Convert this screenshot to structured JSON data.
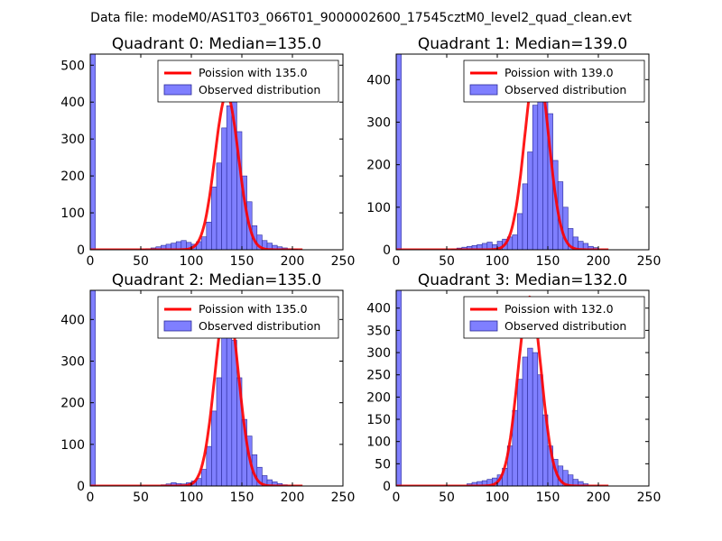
{
  "figure": {
    "suptitle": "Data file: modeM0/AS1T03_066T01_9000002600_17545cztM0_level2_quad_clean.evt"
  },
  "chart_data": [
    {
      "type": "bar",
      "title": "Quadrant 0: Median=135.0",
      "xlim": [
        0,
        250
      ],
      "ylim": [
        0,
        530
      ],
      "xticks": [
        0,
        50,
        100,
        150,
        200,
        250
      ],
      "yticks": [
        0,
        100,
        200,
        300,
        400,
        500
      ],
      "bin_width": 5,
      "hist_bins": [
        [
          0,
          530
        ],
        [
          50,
          2
        ],
        [
          55,
          3
        ],
        [
          60,
          5
        ],
        [
          65,
          8
        ],
        [
          70,
          12
        ],
        [
          75,
          15
        ],
        [
          80,
          18
        ],
        [
          85,
          22
        ],
        [
          90,
          25
        ],
        [
          95,
          20
        ],
        [
          100,
          15
        ],
        [
          105,
          22
        ],
        [
          110,
          35
        ],
        [
          115,
          75
        ],
        [
          120,
          170
        ],
        [
          125,
          235
        ],
        [
          130,
          330
        ],
        [
          135,
          390
        ],
        [
          140,
          400
        ],
        [
          145,
          320
        ],
        [
          150,
          200
        ],
        [
          155,
          130
        ],
        [
          160,
          65
        ],
        [
          165,
          40
        ],
        [
          170,
          25
        ],
        [
          175,
          18
        ],
        [
          180,
          12
        ],
        [
          185,
          8
        ],
        [
          190,
          5
        ],
        [
          195,
          3
        ],
        [
          200,
          2
        ]
      ],
      "poisson_mean": 135.0,
      "poisson_peak": 420,
      "legend": [
        "Poission with 135.0",
        "Observed distribution"
      ]
    },
    {
      "type": "bar",
      "title": "Quadrant 1: Median=139.0",
      "xlim": [
        0,
        250
      ],
      "ylim": [
        0,
        460
      ],
      "xticks": [
        0,
        50,
        100,
        150,
        200,
        250
      ],
      "yticks": [
        0,
        100,
        200,
        300,
        400
      ],
      "bin_width": 5,
      "hist_bins": [
        [
          0,
          460
        ],
        [
          55,
          2
        ],
        [
          60,
          4
        ],
        [
          65,
          6
        ],
        [
          70,
          8
        ],
        [
          75,
          10
        ],
        [
          80,
          12
        ],
        [
          85,
          15
        ],
        [
          90,
          18
        ],
        [
          95,
          12
        ],
        [
          100,
          20
        ],
        [
          105,
          25
        ],
        [
          110,
          30
        ],
        [
          115,
          35
        ],
        [
          120,
          85
        ],
        [
          125,
          155
        ],
        [
          130,
          230
        ],
        [
          135,
          340
        ],
        [
          140,
          370
        ],
        [
          145,
          380
        ],
        [
          150,
          320
        ],
        [
          155,
          210
        ],
        [
          160,
          160
        ],
        [
          165,
          100
        ],
        [
          170,
          50
        ],
        [
          175,
          30
        ],
        [
          180,
          20
        ],
        [
          185,
          15
        ],
        [
          190,
          8
        ],
        [
          195,
          5
        ]
      ],
      "poisson_mean": 139.0,
      "poisson_peak": 440,
      "legend": [
        "Poission with 139.0",
        "Observed distribution"
      ]
    },
    {
      "type": "bar",
      "title": "Quadrant 2: Median=135.0",
      "xlim": [
        0,
        250
      ],
      "ylim": [
        0,
        470
      ],
      "xticks": [
        0,
        50,
        100,
        150,
        200,
        250
      ],
      "yticks": [
        0,
        100,
        200,
        300,
        400
      ],
      "bin_width": 5,
      "hist_bins": [
        [
          0,
          470
        ],
        [
          70,
          3
        ],
        [
          75,
          5
        ],
        [
          80,
          8
        ],
        [
          85,
          6
        ],
        [
          90,
          5
        ],
        [
          95,
          8
        ],
        [
          100,
          12
        ],
        [
          105,
          18
        ],
        [
          110,
          40
        ],
        [
          115,
          95
        ],
        [
          120,
          180
        ],
        [
          125,
          260
        ],
        [
          130,
          360
        ],
        [
          135,
          370
        ],
        [
          140,
          350
        ],
        [
          145,
          260
        ],
        [
          150,
          160
        ],
        [
          155,
          120
        ],
        [
          160,
          75
        ],
        [
          165,
          45
        ],
        [
          170,
          25
        ],
        [
          175,
          15
        ],
        [
          180,
          10
        ],
        [
          185,
          6
        ],
        [
          190,
          3
        ]
      ],
      "poisson_mean": 135.0,
      "poisson_peak": 445,
      "legend": [
        "Poission with 135.0",
        "Observed distribution"
      ]
    },
    {
      "type": "bar",
      "title": "Quadrant 3: Median=132.0",
      "xlim": [
        0,
        250
      ],
      "ylim": [
        0,
        440
      ],
      "xticks": [
        0,
        50,
        100,
        150,
        200,
        250
      ],
      "yticks": [
        0,
        50,
        100,
        150,
        200,
        250,
        300,
        350,
        400
      ],
      "bin_width": 5,
      "hist_bins": [
        [
          0,
          440
        ],
        [
          70,
          5
        ],
        [
          75,
          8
        ],
        [
          80,
          10
        ],
        [
          85,
          12
        ],
        [
          90,
          15
        ],
        [
          95,
          18
        ],
        [
          100,
          25
        ],
        [
          105,
          40
        ],
        [
          110,
          90
        ],
        [
          115,
          170
        ],
        [
          120,
          240
        ],
        [
          125,
          290
        ],
        [
          130,
          310
        ],
        [
          135,
          300
        ],
        [
          140,
          250
        ],
        [
          145,
          160
        ],
        [
          150,
          90
        ],
        [
          155,
          60
        ],
        [
          160,
          45
        ],
        [
          165,
          35
        ],
        [
          170,
          25
        ],
        [
          175,
          15
        ],
        [
          180,
          10
        ],
        [
          185,
          5
        ]
      ],
      "poisson_mean": 132.0,
      "poisson_peak": 425,
      "legend": [
        "Poission with 132.0",
        "Observed distribution"
      ]
    }
  ],
  "colors": {
    "bar_fill": "#7f7fff",
    "bar_edge": "#2a2a99",
    "curve": "#ff0000",
    "axes": "#000000"
  }
}
